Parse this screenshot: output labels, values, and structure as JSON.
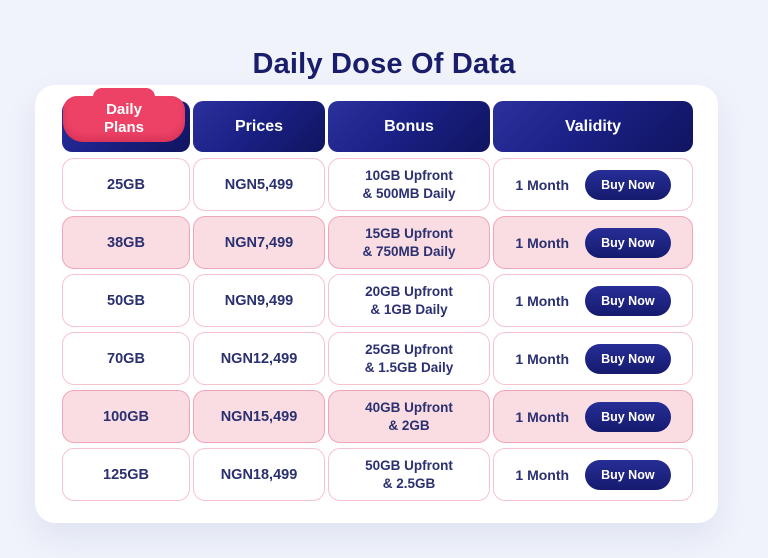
{
  "title": "Daily Dose Of Data",
  "table": {
    "tab": {
      "label": "Daily Plans"
    },
    "headers": {
      "prices": "Prices",
      "bonus": "Bonus",
      "validity": "Validity"
    },
    "rows": [
      {
        "plan": "25GB",
        "price": "NGN5,499",
        "bonus1": "10GB Upfront",
        "bonus2": "& 500MB Daily",
        "validity": "1 Month",
        "cta": "Buy Now",
        "highlight": false
      },
      {
        "plan": "38GB",
        "price": "NGN7,499",
        "bonus1": "15GB Upfront",
        "bonus2": "& 750MB Daily",
        "validity": "1 Month",
        "cta": "Buy Now",
        "highlight": true
      },
      {
        "plan": "50GB",
        "price": "NGN9,499",
        "bonus1": "20GB Upfront",
        "bonus2": "& 1GB Daily",
        "validity": "1 Month",
        "cta": "Buy Now",
        "highlight": false
      },
      {
        "plan": "70GB",
        "price": "NGN12,499",
        "bonus1": "25GB Upfront",
        "bonus2": "& 1.5GB Daily",
        "validity": "1 Month",
        "cta": "Buy Now",
        "highlight": false
      },
      {
        "plan": "100GB",
        "price": "NGN15,499",
        "bonus1": "40GB Upfront",
        "bonus2": "& 2GB",
        "validity": "1 Month",
        "cta": "Buy Now",
        "highlight": true
      },
      {
        "plan": "125GB",
        "price": "NGN18,499",
        "bonus1": "50GB Upfront",
        "bonus2": "& 2.5GB",
        "validity": "1 Month",
        "cta": "Buy Now",
        "highlight": false
      }
    ]
  },
  "colors": {
    "page_background": "#F0F3FA",
    "card_background": "#FFFFFF",
    "header_navy": "#1B2187",
    "header_navy_dark": "#10145F",
    "accent_pink": "#EE4166",
    "row_pink": "#FADDE3",
    "cell_border_pink": "#F7C3CF",
    "text_navy": "#2B3070",
    "title_navy": "#191D6B"
  }
}
